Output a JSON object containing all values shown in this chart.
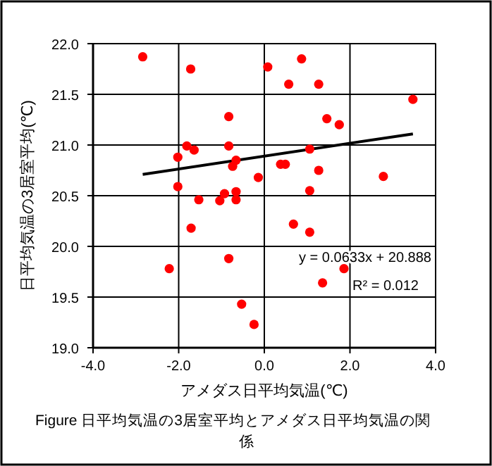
{
  "chart_data": {
    "type": "scatter",
    "xlabel": "アメダス日平均気温(℃)",
    "ylabel": "日平均気温の3居室平均(℃)",
    "annotations": [
      "y = 0.0633x + 20.888",
      "R² = 0.012",
      "Figure  日平均気温の3居室平均とアメダス日平均気温の関係"
    ],
    "xlim": [
      -4,
      4
    ],
    "ylim": [
      19,
      22
    ],
    "xticks": [
      {
        "value": -4,
        "label": "-4.0"
      },
      {
        "value": -2,
        "label": "-2.0"
      },
      {
        "value": 0,
        "label": "0.0"
      },
      {
        "value": 2,
        "label": "2.0"
      },
      {
        "value": 4,
        "label": "4.0"
      }
    ],
    "yticks": [
      {
        "value": 19,
        "label": "19.0"
      },
      {
        "value": 19.5,
        "label": "19.5"
      },
      {
        "value": 20,
        "label": "20.0"
      },
      {
        "value": 20.5,
        "label": "20.5"
      },
      {
        "value": 21,
        "label": "21.0"
      },
      {
        "value": 21.5,
        "label": "21.5"
      },
      {
        "value": 22,
        "label": "22.0"
      }
    ],
    "grid": true,
    "marker": "circle",
    "series": [
      {
        "color": "#ff0000",
        "x": [
          -2.84,
          -1.72,
          0.08,
          -0.83,
          -1.81,
          -1.64,
          -0.83,
          -2.02,
          -0.66,
          -0.74,
          -0.14,
          -2.02,
          -1.53,
          -0.93,
          -1.04,
          -0.66,
          -0.66,
          -1.71,
          -0.83,
          -2.22,
          -0.53,
          -0.24,
          0.87,
          0.57,
          1.27,
          3.47,
          1.46,
          1.75,
          1.06,
          0.38,
          0.49,
          1.27,
          2.78,
          1.06,
          0.68,
          1.06,
          1.86,
          1.36
        ],
        "values": [
          21.87,
          21.75,
          21.77,
          21.28,
          20.99,
          20.95,
          20.99,
          20.88,
          20.85,
          20.79,
          20.68,
          20.59,
          20.46,
          20.52,
          20.45,
          20.54,
          20.46,
          20.18,
          19.88,
          19.78,
          19.43,
          19.23,
          21.85,
          21.6,
          21.6,
          21.45,
          21.26,
          21.2,
          20.96,
          20.81,
          20.81,
          20.75,
          20.69,
          20.55,
          20.22,
          20.14,
          19.78,
          19.64
        ]
      },
      {
        "type": "line",
        "color": "#000000",
        "marker": "none",
        "x": [
          -2.84,
          3.47
        ],
        "values": [
          20.71,
          21.11
        ]
      }
    ]
  }
}
